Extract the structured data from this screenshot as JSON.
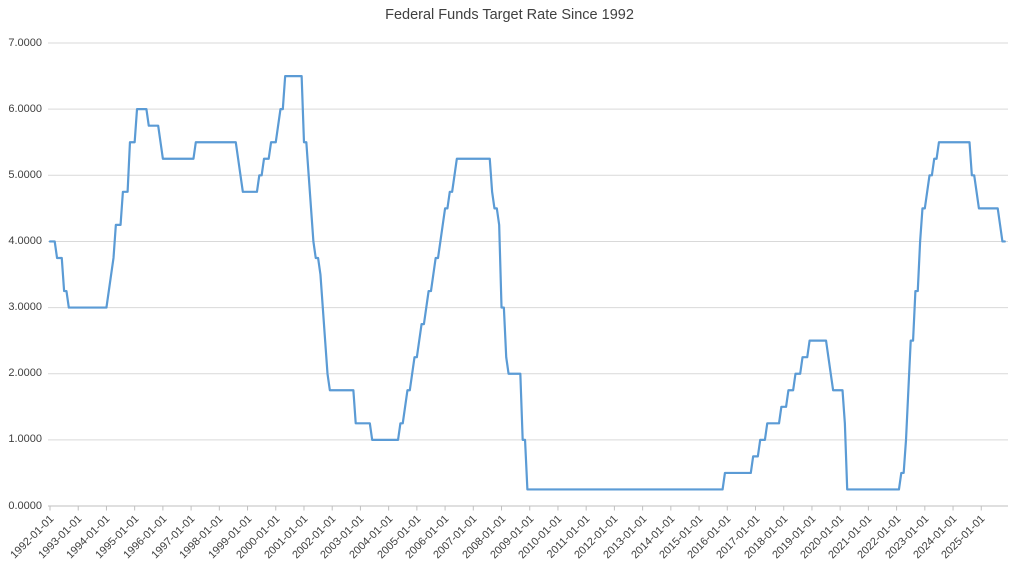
{
  "chart_data": {
    "type": "line",
    "title": "Federal Funds Target Rate Since 1992",
    "xlabel": "",
    "ylabel": "",
    "ylim": [
      0,
      7
    ],
    "grid": "horizontal",
    "legend": "none",
    "colors": {
      "line": "#5B9BD5",
      "gridline": "#D9D9D9",
      "axis": "#BFBFBF",
      "text": "#404040"
    },
    "y_tick_labels": [
      "0.0000",
      "1.0000",
      "2.0000",
      "3.0000",
      "4.0000",
      "5.0000",
      "6.0000",
      "7.0000"
    ],
    "x_tick_labels": [
      "1992-01-01",
      "1993-01-01",
      "1994-01-01",
      "1995-01-01",
      "1996-01-01",
      "1997-01-01",
      "1998-01-01",
      "1999-01-01",
      "2000-01-01",
      "2001-01-01",
      "2002-01-01",
      "2003-01-01",
      "2004-01-01",
      "2005-01-01",
      "2006-01-01",
      "2007-01-01",
      "2008-01-01",
      "2009-01-01",
      "2010-01-01",
      "2011-01-01",
      "2012-01-01",
      "2013-01-01",
      "2014-01-01",
      "2015-01-01",
      "2016-01-01",
      "2017-01-01",
      "2018-01-01",
      "2019-01-01",
      "2020-01-01",
      "2021-01-01",
      "2022-01-01",
      "2023-01-01",
      "2024-01-01",
      "2025-01-01"
    ],
    "series": [
      {
        "name": "Federal Funds Target Rate",
        "sampling": "monthly",
        "start": "1992-01",
        "end": "2025-11",
        "rate_changes": [
          [
            "1992-01",
            4.0
          ],
          [
            "1992-04",
            3.75
          ],
          [
            "1992-07",
            3.25
          ],
          [
            "1992-09",
            3.0
          ],
          [
            "1994-02",
            3.25
          ],
          [
            "1994-03",
            3.5
          ],
          [
            "1994-04",
            3.75
          ],
          [
            "1994-05",
            4.25
          ],
          [
            "1994-08",
            4.75
          ],
          [
            "1994-11",
            5.5
          ],
          [
            "1995-02",
            6.0
          ],
          [
            "1995-07",
            5.75
          ],
          [
            "1995-12",
            5.5
          ],
          [
            "1996-01",
            5.25
          ],
          [
            "1997-03",
            5.5
          ],
          [
            "1998-09",
            5.25
          ],
          [
            "1998-10",
            5.0
          ],
          [
            "1998-11",
            4.75
          ],
          [
            "1999-06",
            5.0
          ],
          [
            "1999-08",
            5.25
          ],
          [
            "1999-11",
            5.5
          ],
          [
            "2000-02",
            5.75
          ],
          [
            "2000-03",
            6.0
          ],
          [
            "2000-05",
            6.5
          ],
          [
            "2001-01",
            5.5
          ],
          [
            "2001-03",
            5.0
          ],
          [
            "2001-04",
            4.5
          ],
          [
            "2001-05",
            4.0
          ],
          [
            "2001-06",
            3.75
          ],
          [
            "2001-08",
            3.5
          ],
          [
            "2001-09",
            3.0
          ],
          [
            "2001-10",
            2.5
          ],
          [
            "2001-11",
            2.0
          ],
          [
            "2001-12",
            1.75
          ],
          [
            "2002-11",
            1.25
          ],
          [
            "2003-06",
            1.0
          ],
          [
            "2004-06",
            1.25
          ],
          [
            "2004-08",
            1.5
          ],
          [
            "2004-09",
            1.75
          ],
          [
            "2004-11",
            2.0
          ],
          [
            "2004-12",
            2.25
          ],
          [
            "2005-02",
            2.5
          ],
          [
            "2005-03",
            2.75
          ],
          [
            "2005-05",
            3.0
          ],
          [
            "2005-06",
            3.25
          ],
          [
            "2005-08",
            3.5
          ],
          [
            "2005-09",
            3.75
          ],
          [
            "2005-11",
            4.0
          ],
          [
            "2005-12",
            4.25
          ],
          [
            "2006-01",
            4.5
          ],
          [
            "2006-03",
            4.75
          ],
          [
            "2006-05",
            5.0
          ],
          [
            "2006-06",
            5.25
          ],
          [
            "2007-09",
            4.75
          ],
          [
            "2007-10",
            4.5
          ],
          [
            "2007-12",
            4.25
          ],
          [
            "2008-01",
            3.0
          ],
          [
            "2008-03",
            2.25
          ],
          [
            "2008-04",
            2.0
          ],
          [
            "2008-10",
            1.0
          ],
          [
            "2008-12",
            0.25
          ],
          [
            "2015-12",
            0.5
          ],
          [
            "2016-12",
            0.75
          ],
          [
            "2017-03",
            1.0
          ],
          [
            "2017-06",
            1.25
          ],
          [
            "2017-12",
            1.5
          ],
          [
            "2018-03",
            1.75
          ],
          [
            "2018-06",
            2.0
          ],
          [
            "2018-09",
            2.25
          ],
          [
            "2018-12",
            2.5
          ],
          [
            "2019-08",
            2.25
          ],
          [
            "2019-09",
            2.0
          ],
          [
            "2019-10",
            1.75
          ],
          [
            "2020-03",
            1.25
          ],
          [
            "2020-04",
            0.25
          ],
          [
            "2022-03",
            0.5
          ],
          [
            "2022-05",
            1.0
          ],
          [
            "2022-06",
            1.75
          ],
          [
            "2022-07",
            2.5
          ],
          [
            "2022-09",
            3.25
          ],
          [
            "2022-11",
            4.0
          ],
          [
            "2022-12",
            4.5
          ],
          [
            "2023-02",
            4.75
          ],
          [
            "2023-03",
            5.0
          ],
          [
            "2023-05",
            5.25
          ],
          [
            "2023-07",
            5.5
          ],
          [
            "2024-09",
            5.0
          ],
          [
            "2024-11",
            4.75
          ],
          [
            "2024-12",
            4.5
          ],
          [
            "2025-09",
            4.25
          ],
          [
            "2025-10",
            4.0
          ]
        ]
      }
    ]
  }
}
